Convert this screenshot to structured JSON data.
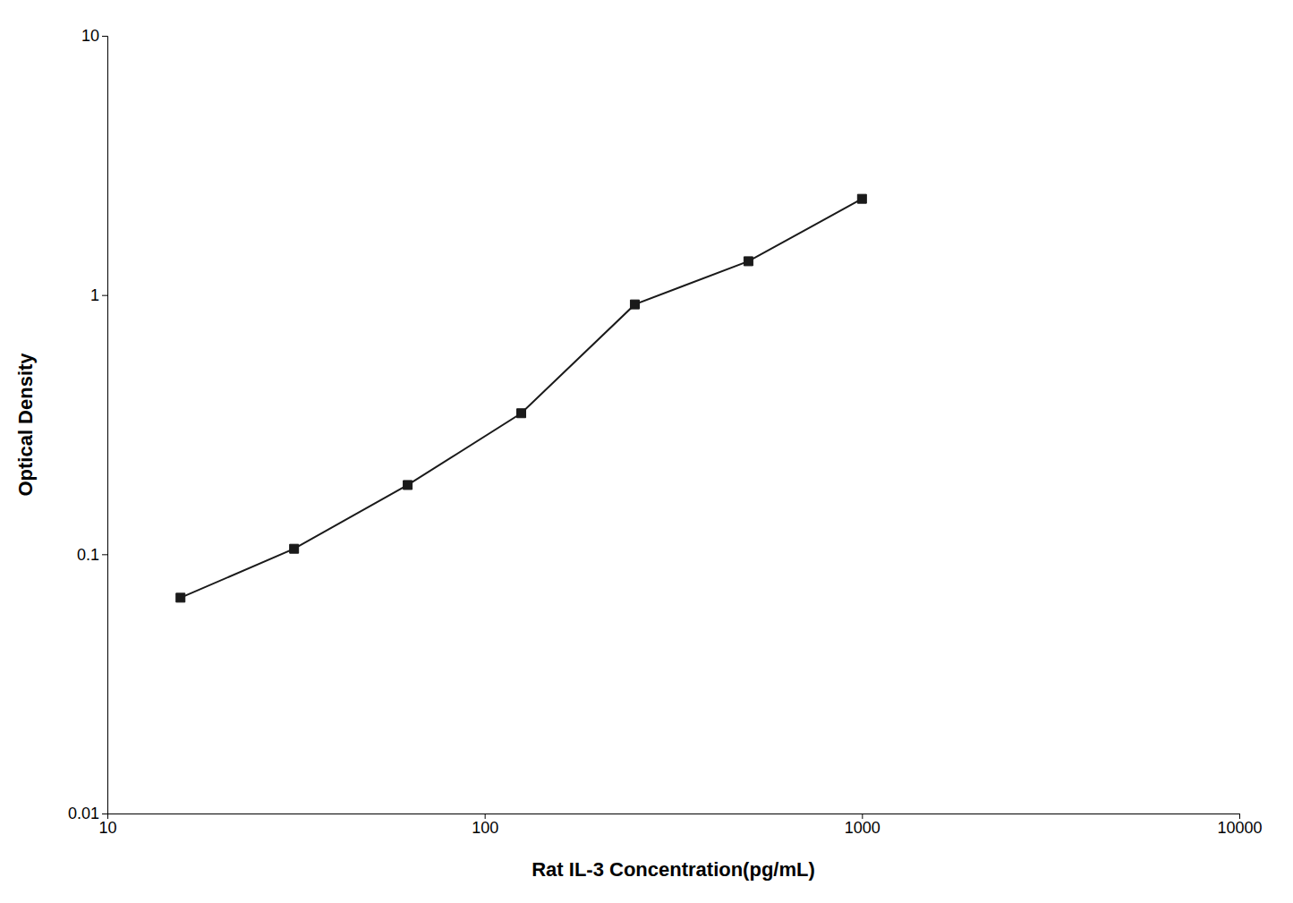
{
  "chart_data": {
    "type": "line",
    "x": [
      15.625,
      31.25,
      62.5,
      125,
      250,
      500,
      1000
    ],
    "values": [
      0.068,
      0.105,
      0.185,
      0.35,
      0.92,
      1.35,
      2.35
    ],
    "xlabel": "Rat IL-3 Concentration(pg/mL)",
    "ylabel": "Optical Density",
    "xlim": [
      10,
      10000
    ],
    "ylim": [
      0.01,
      10
    ],
    "xticks": [
      10,
      100,
      1000,
      10000
    ],
    "yticks": [
      0.01,
      0.1,
      1,
      10
    ],
    "log": true,
    "grid": false,
    "color": "#1a1a1a",
    "marker": "square"
  }
}
